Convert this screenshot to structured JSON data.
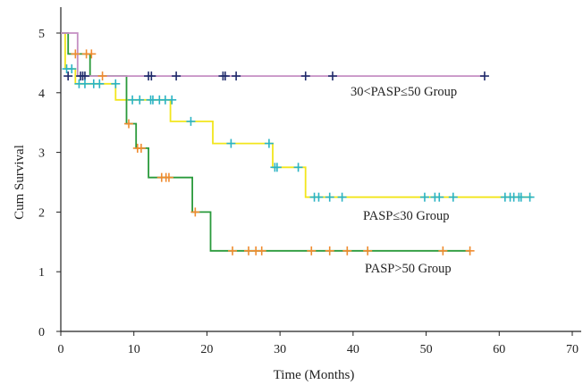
{
  "chart_data": {
    "type": "line",
    "subtype": "kaplan-meier step survival curves",
    "xlabel": "Time (Months)",
    "ylabel": "Cum Survival",
    "xlim": [
      0,
      70
    ],
    "ylim": [
      0,
      5
    ],
    "xticks": [
      "0",
      "10",
      "20",
      "30",
      "40",
      "50",
      "60",
      "70"
    ],
    "yticks": [
      "0",
      "1",
      "2",
      "3",
      "4",
      "5"
    ],
    "grid": false,
    "censor_marker": "plus",
    "series": [
      {
        "name": "30<PASP≤50 Group",
        "color": "#c58fc3",
        "censor_color": "#1f2a6b",
        "steps": [
          [
            0,
            5.0
          ],
          [
            2.3,
            5.0
          ],
          [
            2.3,
            4.28
          ],
          [
            58,
            4.28
          ]
        ],
        "censored_x": [
          1.0,
          2.7,
          3.0,
          3.3,
          12.0,
          12.4,
          15.8,
          22.2,
          22.5,
          24.0,
          33.5,
          37.2,
          58.0
        ],
        "censored_y": 4.28
      },
      {
        "name": "PASP≤30 Group",
        "color": "#f2e61c",
        "censor_color": "#2ab3c4",
        "steps": [
          [
            0,
            5.0
          ],
          [
            0.6,
            5.0
          ],
          [
            0.6,
            4.4
          ],
          [
            2.0,
            4.4
          ],
          [
            2.0,
            4.15
          ],
          [
            7.5,
            4.15
          ],
          [
            7.5,
            3.88
          ],
          [
            9.0,
            3.88
          ],
          [
            9.0,
            3.88
          ],
          [
            15.0,
            3.88
          ],
          [
            15.0,
            3.52
          ],
          [
            20.8,
            3.52
          ],
          [
            20.8,
            3.15
          ],
          [
            29.0,
            3.15
          ],
          [
            29.0,
            2.75
          ],
          [
            33.5,
            2.75
          ],
          [
            33.5,
            2.25
          ],
          [
            64.5,
            2.25
          ]
        ],
        "censored_x": [
          0.8,
          1.5,
          2.5,
          3.3,
          4.5,
          5.3,
          7.5,
          9.8,
          10.8,
          12.3,
          12.6,
          13.5,
          14.3,
          15.2,
          17.8,
          23.3,
          28.5,
          29.3,
          29.6,
          32.5,
          34.7,
          35.3,
          36.8,
          38.5,
          49.8,
          51.2,
          51.8,
          53.7,
          60.8,
          61.5,
          62.0,
          62.7,
          63.0,
          64.2
        ],
        "censored_y": [
          4.4,
          4.4,
          4.15,
          4.15,
          4.15,
          4.15,
          4.15,
          3.88,
          3.88,
          3.88,
          3.88,
          3.88,
          3.88,
          3.88,
          3.52,
          3.15,
          3.15,
          2.75,
          2.75,
          2.75,
          2.25,
          2.25,
          2.25,
          2.25,
          2.25,
          2.25,
          2.25,
          2.25,
          2.25,
          2.25,
          2.25,
          2.25,
          2.25,
          2.25
        ]
      },
      {
        "name": "PASP>50 Group",
        "color": "#2a9a3c",
        "censor_color": "#f08b2f",
        "steps": [
          [
            0,
            5.0
          ],
          [
            1.0,
            5.0
          ],
          [
            1.0,
            4.65
          ],
          [
            4.0,
            4.65
          ],
          [
            4.0,
            4.28
          ],
          [
            9.0,
            4.28
          ],
          [
            9.0,
            3.48
          ],
          [
            10.3,
            3.48
          ],
          [
            10.3,
            3.07
          ],
          [
            12.0,
            3.07
          ],
          [
            12.0,
            2.58
          ],
          [
            18.0,
            2.58
          ],
          [
            18.0,
            2.0
          ],
          [
            20.5,
            2.0
          ],
          [
            20.5,
            1.35
          ],
          [
            56,
            1.35
          ]
        ],
        "censored_x": [
          2.0,
          3.5,
          4.2,
          5.7,
          9.3,
          10.5,
          11.0,
          13.8,
          14.4,
          14.8,
          18.4,
          23.5,
          25.7,
          26.7,
          27.5,
          34.3,
          36.8,
          39.2,
          42.0,
          52.3,
          56.0
        ],
        "censored_y": [
          4.65,
          4.65,
          4.65,
          4.28,
          3.48,
          3.07,
          3.07,
          2.58,
          2.58,
          2.58,
          2.0,
          1.35,
          1.35,
          1.35,
          1.35,
          1.35,
          1.35,
          1.35,
          1.35,
          1.35,
          1.35
        ]
      }
    ]
  }
}
